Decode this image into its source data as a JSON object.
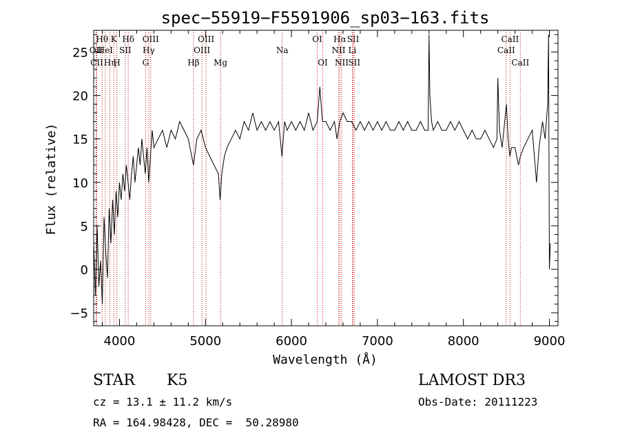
{
  "chart_data": {
    "type": "line",
    "title": "spec−55919−F5591906_sp03−163.fits",
    "xlabel": "Wavelength (Å)",
    "ylabel": "Flux (relative)",
    "xlim": [
      3700,
      9100
    ],
    "ylim": [
      -6.5,
      27.5
    ],
    "xticks": [
      4000,
      5000,
      6000,
      7000,
      8000,
      9000
    ],
    "yticks": [
      -5,
      0,
      5,
      10,
      15,
      20,
      25
    ],
    "series": [
      {
        "name": "spectrum",
        "points": [
          [
            3700,
            3
          ],
          [
            3720,
            -3
          ],
          [
            3740,
            5
          ],
          [
            3760,
            -2
          ],
          [
            3780,
            1
          ],
          [
            3800,
            -4
          ],
          [
            3820,
            6
          ],
          [
            3840,
            2
          ],
          [
            3860,
            -1
          ],
          [
            3880,
            7
          ],
          [
            3900,
            3
          ],
          [
            3920,
            8
          ],
          [
            3940,
            4
          ],
          [
            3960,
            9
          ],
          [
            3980,
            6
          ],
          [
            4000,
            10
          ],
          [
            4020,
            8
          ],
          [
            4040,
            11
          ],
          [
            4060,
            9
          ],
          [
            4080,
            12
          ],
          [
            4100,
            10
          ],
          [
            4120,
            8
          ],
          [
            4140,
            11
          ],
          [
            4160,
            13
          ],
          [
            4180,
            10
          ],
          [
            4200,
            12
          ],
          [
            4220,
            14
          ],
          [
            4240,
            12
          ],
          [
            4260,
            15
          ],
          [
            4280,
            13
          ],
          [
            4300,
            11
          ],
          [
            4320,
            14
          ],
          [
            4340,
            10
          ],
          [
            4360,
            13
          ],
          [
            4380,
            16
          ],
          [
            4400,
            14
          ],
          [
            4450,
            15
          ],
          [
            4500,
            16
          ],
          [
            4550,
            14
          ],
          [
            4600,
            16
          ],
          [
            4650,
            15
          ],
          [
            4700,
            17
          ],
          [
            4750,
            16
          ],
          [
            4800,
            15
          ],
          [
            4860,
            12
          ],
          [
            4900,
            15
          ],
          [
            4950,
            16
          ],
          [
            5000,
            14
          ],
          [
            5050,
            13
          ],
          [
            5100,
            12
          ],
          [
            5150,
            11
          ],
          [
            5170,
            8
          ],
          [
            5190,
            11
          ],
          [
            5220,
            13
          ],
          [
            5250,
            14
          ],
          [
            5300,
            15
          ],
          [
            5350,
            16
          ],
          [
            5400,
            15
          ],
          [
            5450,
            17
          ],
          [
            5500,
            16
          ],
          [
            5550,
            18
          ],
          [
            5600,
            16
          ],
          [
            5650,
            17
          ],
          [
            5700,
            16
          ],
          [
            5750,
            17
          ],
          [
            5800,
            16
          ],
          [
            5850,
            17
          ],
          [
            5890,
            13
          ],
          [
            5920,
            17
          ],
          [
            5950,
            16
          ],
          [
            6000,
            17
          ],
          [
            6050,
            16
          ],
          [
            6100,
            17
          ],
          [
            6150,
            16
          ],
          [
            6200,
            18
          ],
          [
            6250,
            16
          ],
          [
            6300,
            17
          ],
          [
            6330,
            21
          ],
          [
            6360,
            17
          ],
          [
            6400,
            17
          ],
          [
            6450,
            16
          ],
          [
            6500,
            17
          ],
          [
            6530,
            15
          ],
          [
            6563,
            17
          ],
          [
            6600,
            18
          ],
          [
            6650,
            17
          ],
          [
            6700,
            17
          ],
          [
            6750,
            16
          ],
          [
            6800,
            17
          ],
          [
            6850,
            16
          ],
          [
            6900,
            17
          ],
          [
            6950,
            16
          ],
          [
            7000,
            17
          ],
          [
            7050,
            16
          ],
          [
            7100,
            17
          ],
          [
            7150,
            16
          ],
          [
            7200,
            16
          ],
          [
            7250,
            17
          ],
          [
            7300,
            16
          ],
          [
            7350,
            17
          ],
          [
            7400,
            16
          ],
          [
            7450,
            16
          ],
          [
            7500,
            17
          ],
          [
            7550,
            16
          ],
          [
            7590,
            16
          ],
          [
            7600,
            27
          ],
          [
            7610,
            20
          ],
          [
            7630,
            17
          ],
          [
            7650,
            16
          ],
          [
            7700,
            17
          ],
          [
            7750,
            16
          ],
          [
            7800,
            16
          ],
          [
            7850,
            17
          ],
          [
            7900,
            16
          ],
          [
            7950,
            17
          ],
          [
            8000,
            16
          ],
          [
            8050,
            15
          ],
          [
            8100,
            16
          ],
          [
            8150,
            15
          ],
          [
            8200,
            15
          ],
          [
            8250,
            16
          ],
          [
            8300,
            15
          ],
          [
            8350,
            14
          ],
          [
            8390,
            15
          ],
          [
            8400,
            22
          ],
          [
            8420,
            16
          ],
          [
            8450,
            14
          ],
          [
            8500,
            19
          ],
          [
            8520,
            15
          ],
          [
            8540,
            13
          ],
          [
            8560,
            14
          ],
          [
            8600,
            14
          ],
          [
            8640,
            12
          ],
          [
            8662,
            13
          ],
          [
            8700,
            14
          ],
          [
            8750,
            15
          ],
          [
            8800,
            16
          ],
          [
            8850,
            10
          ],
          [
            8880,
            14
          ],
          [
            8920,
            17
          ],
          [
            8950,
            15
          ],
          [
            8980,
            19
          ],
          [
            8990,
            27
          ],
          [
            9000,
            0
          ],
          [
            9010,
            3
          ]
        ]
      }
    ],
    "lines": [
      {
        "label": "Hθ",
        "x": 3798,
        "row": 1
      },
      {
        "label": "OII",
        "x": 3727,
        "row": 2
      },
      {
        "label": "HeI",
        "x": 3835,
        "row": 2
      },
      {
        "label": "CII",
        "x": 3736,
        "row": 3
      },
      {
        "label": "Hη",
        "x": 3889,
        "row": 3
      },
      {
        "label": "K",
        "x": 3934,
        "row": 1
      },
      {
        "label": "SII",
        "x": 4068,
        "row": 2
      },
      {
        "label": "H",
        "x": 3969,
        "row": 3
      },
      {
        "label": "Hδ",
        "x": 4102,
        "row": 1
      },
      {
        "label": "OIII",
        "x": 4363,
        "row": 1
      },
      {
        "label": "Hγ",
        "x": 4340,
        "row": 2
      },
      {
        "label": "G",
        "x": 4304,
        "row": 3
      },
      {
        "label": "Hβ",
        "x": 4861,
        "row": 3
      },
      {
        "label": "OIII",
        "x": 5007,
        "row": 1
      },
      {
        "label": "OIII",
        "x": 4959,
        "row": 2
      },
      {
        "label": "Mg",
        "x": 5175,
        "row": 3
      },
      {
        "label": "Na",
        "x": 5893,
        "row": 2
      },
      {
        "label": "OI",
        "x": 6300,
        "row": 1
      },
      {
        "label": "OI",
        "x": 6364,
        "row": 3
      },
      {
        "label": "Hα",
        "x": 6563,
        "row": 1
      },
      {
        "label": "NII",
        "x": 6548,
        "row": 2
      },
      {
        "label": "NII",
        "x": 6584,
        "row": 3
      },
      {
        "label": "SII",
        "x": 6717,
        "row": 1
      },
      {
        "label": "Li",
        "x": 6708,
        "row": 2
      },
      {
        "label": "SII",
        "x": 6731,
        "row": 3
      },
      {
        "label": "CaII",
        "x": 8542,
        "row": 1
      },
      {
        "label": "CaII",
        "x": 8498,
        "row": 2
      },
      {
        "label": "CaII",
        "x": 8662,
        "row": 3
      }
    ]
  },
  "info": {
    "object_class": "STAR",
    "subclass": "K5",
    "survey": "LAMOST DR3",
    "cz": "cz = 13.1 ± 11.2 km/s",
    "obs_date": "Obs-Date: 20111223",
    "coords": "RA = 164.98428, DEC =  50.28980"
  }
}
